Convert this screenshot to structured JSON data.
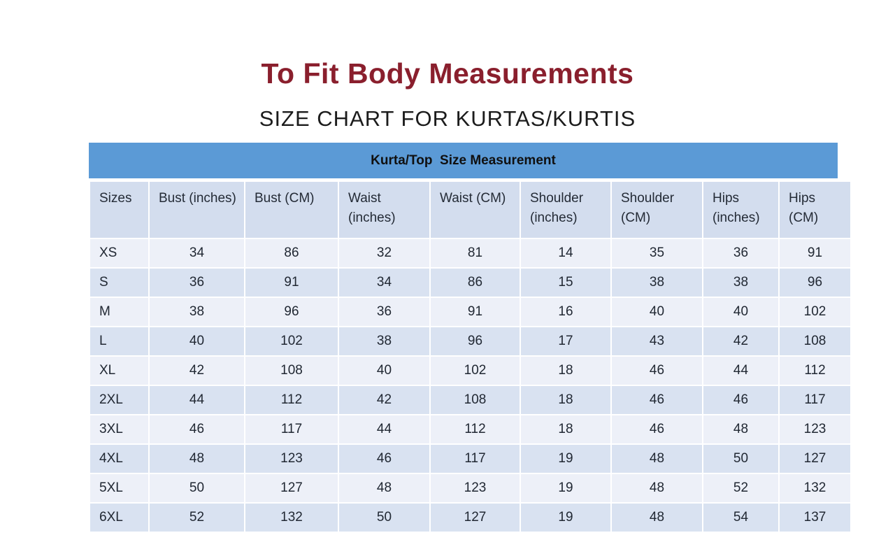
{
  "page": {
    "title": "To Fit Body Measurements",
    "subtitle": "SIZE CHART FOR KURTAS/KURTIS"
  },
  "chart_data": {
    "type": "table",
    "title": "Kurta/Top  Size Measurement",
    "columns": [
      "Sizes",
      "Bust (inches)",
      "Bust (CM)",
      "Waist (inches)",
      "Waist (CM)",
      "Shoulder (inches)",
      "Shoulder (CM)",
      "Hips (inches)",
      "Hips (CM)"
    ],
    "rows": [
      [
        "XS",
        34,
        86,
        32,
        81,
        14,
        35,
        36,
        91
      ],
      [
        "S",
        36,
        91,
        34,
        86,
        15,
        38,
        38,
        96
      ],
      [
        "M",
        38,
        96,
        36,
        91,
        16,
        40,
        40,
        102
      ],
      [
        "L",
        40,
        102,
        38,
        96,
        17,
        43,
        42,
        108
      ],
      [
        "XL",
        42,
        108,
        40,
        102,
        18,
        46,
        44,
        112
      ],
      [
        "2XL",
        44,
        112,
        42,
        108,
        18,
        46,
        46,
        117
      ],
      [
        "3XL",
        46,
        117,
        44,
        112,
        18,
        46,
        48,
        123
      ],
      [
        "4XL",
        48,
        123,
        46,
        117,
        19,
        48,
        50,
        127
      ],
      [
        "5XL",
        50,
        127,
        48,
        123,
        19,
        48,
        52,
        132
      ],
      [
        "6XL",
        52,
        132,
        50,
        127,
        19,
        48,
        54,
        137
      ]
    ],
    "layout": {
      "legend": "none",
      "grid": "white cell separators",
      "striped_rows": true
    }
  },
  "colors": {
    "title_text": "#8a1f2d",
    "subtitle_text": "#1c1c1c",
    "banner_bg": "#5b9ad6",
    "header_row_bg": "#d3ddee",
    "row_light_bg": "#edf0f8",
    "row_shaded_bg": "#d9e2f1",
    "cell_text": "#212833",
    "background": "#ffffff"
  }
}
